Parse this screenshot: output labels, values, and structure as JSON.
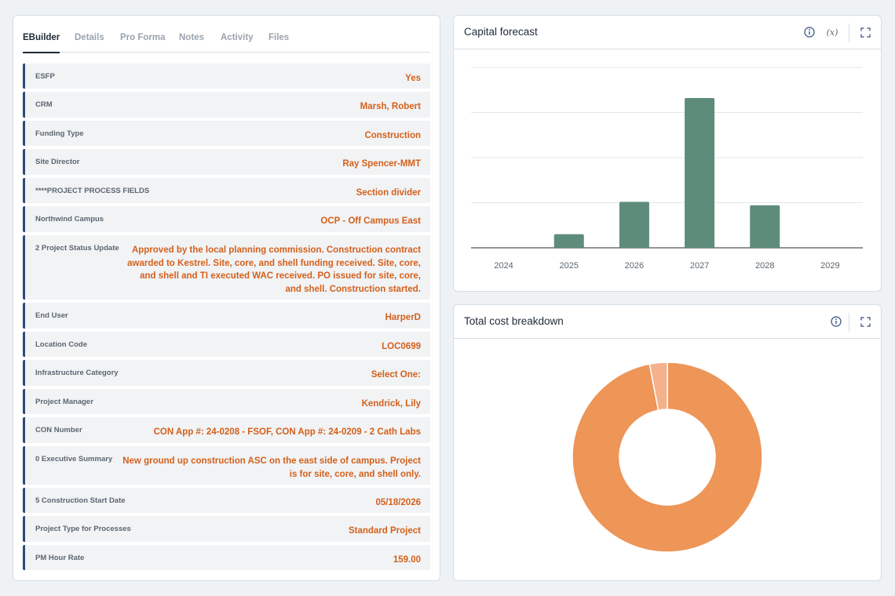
{
  "tabs": [
    "EBuilder",
    "Details",
    "Pro Forma",
    "Notes",
    "Activity",
    "Files"
  ],
  "active_tab": "EBuilder",
  "fields": [
    {
      "label": "ESFP",
      "value": "Yes"
    },
    {
      "label": "CRM",
      "value": "Marsh, Robert"
    },
    {
      "label": "Funding Type",
      "value": "Construction"
    },
    {
      "label": "Site Director",
      "value": "Ray Spencer-MMT"
    },
    {
      "label": "****PROJECT PROCESS FIELDS",
      "value": "Section divider"
    },
    {
      "label": "Northwind Campus",
      "value": "OCP - Off Campus East"
    },
    {
      "label": "2 Project Status Update",
      "value": "Approved by the local planning commission. Construction contract awarded to Kestrel. Site, core, and shell funding received. Site, core, and shell and TI executed WAC received. PO issued for site, core, and shell. Construction started."
    },
    {
      "label": "End User",
      "value": "HarperD"
    },
    {
      "label": "Location Code",
      "value": "LOC0699"
    },
    {
      "label": "Infrastructure Category",
      "value": "Select One:"
    },
    {
      "label": "Project Manager",
      "value": "Kendrick, Lily"
    },
    {
      "label": "CON Number",
      "value": "CON App #: 24-0208 - FSOF, CON App #: 24-0209 - 2 Cath Labs"
    },
    {
      "label": "0 Executive Summary",
      "value": "New ground up construction ASC on the east side of campus. Project is for site, core, and shell only."
    },
    {
      "label": "5 Construction Start Date",
      "value": "05/18/2026"
    },
    {
      "label": "Project Type for Processes",
      "value": "Standard Project"
    },
    {
      "label": "PM Hour Rate",
      "value": "159.00"
    }
  ],
  "capital_forecast": {
    "title": "Capital forecast",
    "icons": [
      "info-icon",
      "variable-icon",
      "expand-icon"
    ],
    "fx_label": "(x)"
  },
  "cost_breakdown": {
    "title": "Total cost breakdown",
    "icons": [
      "info-icon",
      "expand-icon"
    ]
  },
  "colors": {
    "accent_value": "#d4601b",
    "bar": "#5e8c7b",
    "donut_main": "#ee9558",
    "donut_minor": "#f3b18c",
    "row_border": "#2b4a7a"
  },
  "chart_data": [
    {
      "type": "bar",
      "categories": [
        "2024",
        "2025",
        "2026",
        "2027",
        "2028",
        "2029"
      ],
      "values": [
        0,
        0.4,
        1.35,
        4.4,
        1.25,
        0
      ],
      "ylim": [
        0,
        5.3
      ],
      "gridlines": 4,
      "grid": true
    },
    {
      "type": "pie",
      "donut": true,
      "values": [
        97,
        3
      ],
      "slice_colors": [
        "#ee9558",
        "#f3b18c"
      ]
    }
  ]
}
